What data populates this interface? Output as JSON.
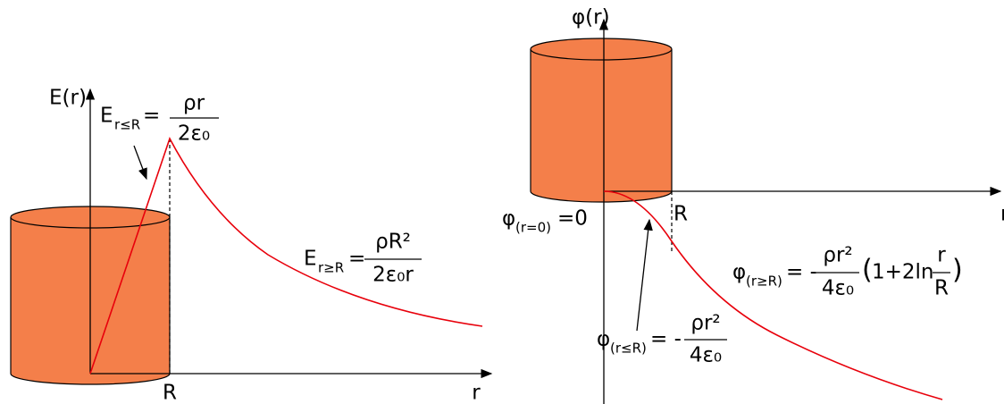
{
  "left": {
    "y_axis_label": "E(r)",
    "x_axis_label": "r",
    "r_marker": "R",
    "inner_formula": {
      "symbol": "E",
      "subscript": "r≤R",
      "equals": "=",
      "numerator": "ρr",
      "denominator": "2ε₀"
    },
    "outer_formula": {
      "symbol": "E",
      "subscript": "r≥R",
      "equals": "=",
      "numerator": "ρR²",
      "denominator": "2ε₀r"
    }
  },
  "right": {
    "y_axis_label": "φ(r)",
    "x_axis_label": "r",
    "r_marker": "R",
    "origin_formula": {
      "symbol": "φ",
      "subscript": "(r=0)",
      "rhs": "=0"
    },
    "outer_formula": {
      "symbol": "φ",
      "subscript": "(r≥R)",
      "equals": "= -",
      "numerator": "ρr²",
      "denominator": "4ε₀",
      "paren_open": "(",
      "term": "1+2ln",
      "inner_numerator": "r",
      "inner_denominator": "R",
      "paren_close": ")"
    },
    "inner_formula": {
      "symbol": "φ",
      "subscript": "(r≤R)",
      "equals": "= -",
      "numerator": "ρr²",
      "denominator": "4ε₀"
    }
  }
}
